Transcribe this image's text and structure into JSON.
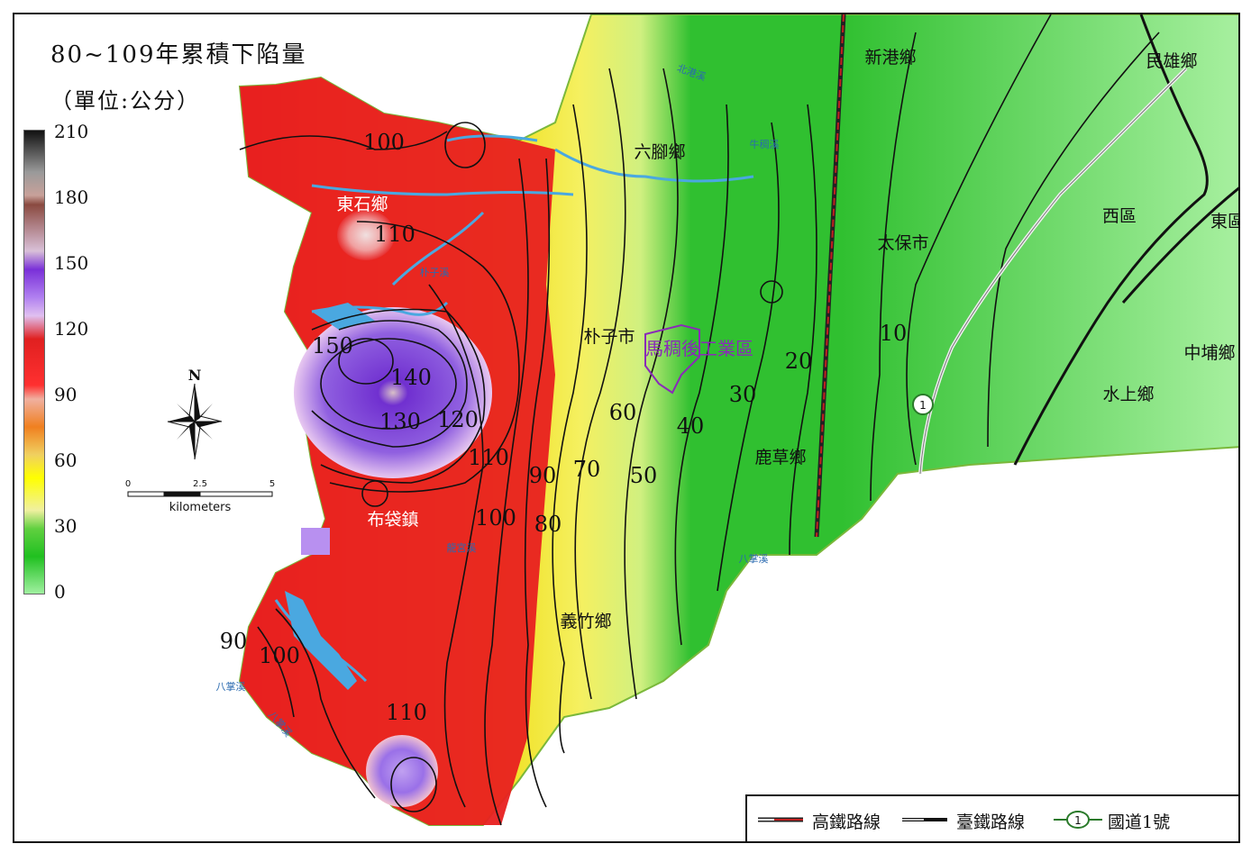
{
  "title": "80~109年累積下陷量",
  "unit": "（單位:公分）",
  "colorbar": {
    "ticks": [
      "210",
      "180",
      "150",
      "120",
      "90",
      "60",
      "30",
      "0"
    ]
  },
  "contour_labels": [
    "100",
    "110",
    "150",
    "140",
    "130",
    "120",
    "110",
    "90",
    "70",
    "60",
    "50",
    "40",
    "30",
    "20",
    "10",
    "100",
    "80",
    "90",
    "100",
    "110"
  ],
  "place_labels": [
    "東石鄉",
    "布袋鎮",
    "六腳鄉",
    "朴子市",
    "鹿草鄉",
    "義竹鄉",
    "新港鄉",
    "民雄鄉",
    "太保市",
    "西區",
    "東區",
    "中埔鄉",
    "水上鄉"
  ],
  "highlight_label": "馬稠後工業區",
  "rivers": [
    "北港溪",
    "牛稠溪",
    "朴子溪",
    "龍宮溪",
    "八掌溪"
  ],
  "compass": {
    "north": "N"
  },
  "scalebar": {
    "ticks": [
      "0",
      "2.5",
      "5"
    ],
    "unit": "kilometers"
  },
  "legend": {
    "hsr": "高鐵路線",
    "rail": "臺鐵路線",
    "freeway": "國道1號",
    "freeway_shield": "1"
  },
  "colors": {
    "red": "#e82020",
    "purple": "#7a3ad8",
    "orange": "#f08a20",
    "yellow": "#f2ee20",
    "green": "#3cc83c",
    "river": "#4aa8e0",
    "boundary": "#7ab83a",
    "highlight": "#8a2ab8"
  }
}
